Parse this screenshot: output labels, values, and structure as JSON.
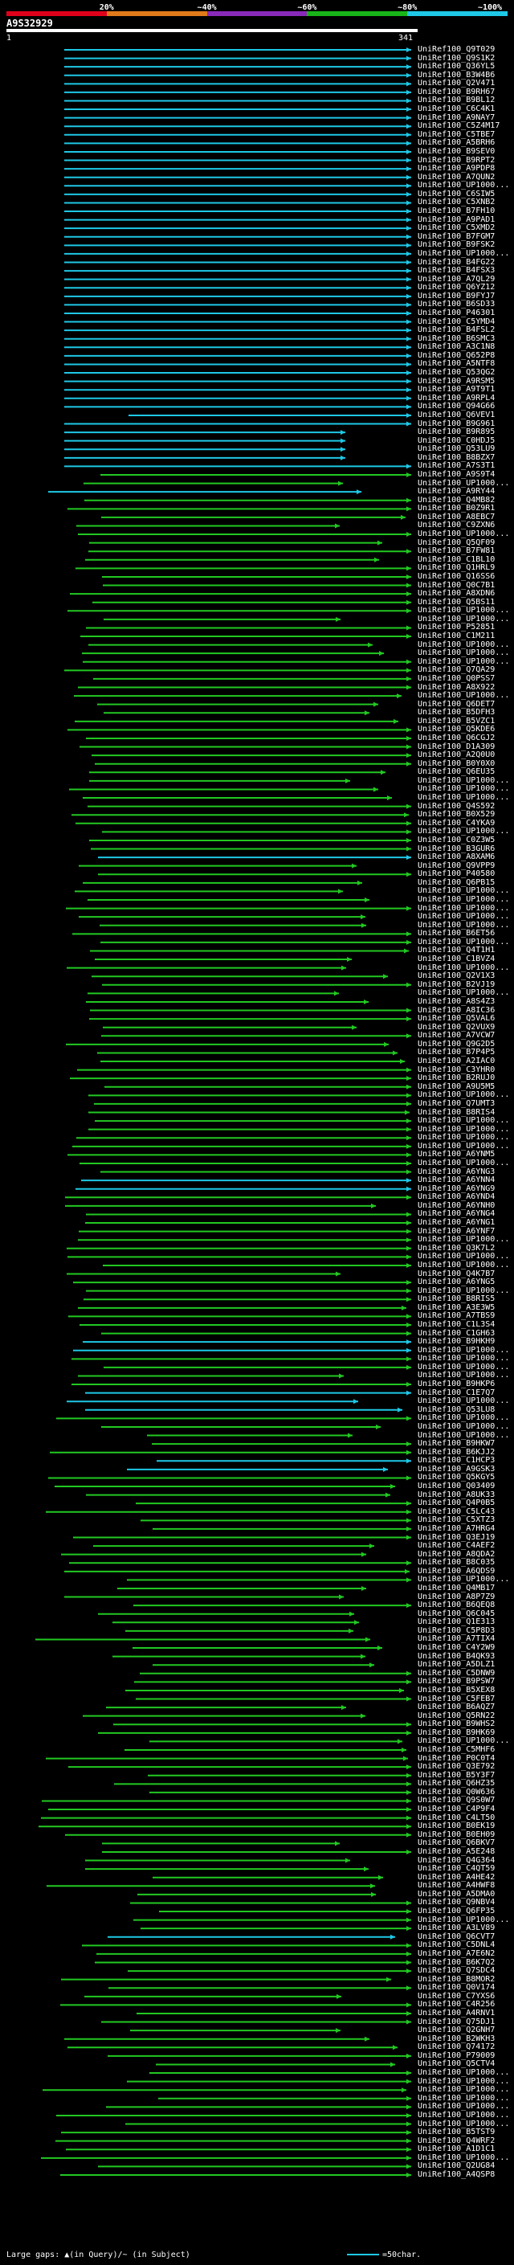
{
  "scale": {
    "labels": [
      "20%",
      "~40%",
      "~60%",
      "~80%",
      "~100%"
    ],
    "colors": [
      "#e0001a",
      "#e07a1a",
      "#8a2ab8",
      "#18b418",
      "#1ec8e6"
    ]
  },
  "query": {
    "title": "A9S32929",
    "start": "1",
    "end": "341"
  },
  "colors": {
    "cyan": "#1ec8e6",
    "green": "#22c822",
    "dark_green": "#0a6a0a",
    "white": "#ffffff"
  },
  "hits": [
    "UniRef100_Q9T029",
    "UniRef100_Q9S1K2",
    "UniRef100_Q36YL5",
    "UniRef100_B3W4B6",
    "UniRef100_Q2V471",
    "UniRef100_B9RH67",
    "UniRef100_B9BL12",
    "UniRef100_C6C4K1",
    "UniRef100_A9NAY7",
    "UniRef100_C5Z4M17",
    "UniRef100_C5TBE7",
    "UniRef100_A5BRH6",
    "UniRef100_B9SEV0",
    "UniRef100_B9RPT2",
    "UniRef100_A9PDP8",
    "UniRef100_A7QUN2",
    "UniRef100_UP1000...",
    "UniRef100_C6SIW5",
    "UniRef100_C5XNB2",
    "UniRef100_B7FH10",
    "UniRef100_A9PAD1",
    "UniRef100_C5XMD2",
    "UniRef100_B7FGM7",
    "UniRef100_B9FSK2",
    "UniRef100_UP1000...",
    "UniRef100_B4FG22",
    "UniRef100_B4FSX3",
    "UniRef100_A7QL29",
    "UniRef100_Q6YZ12",
    "UniRef100_B9FYJ7",
    "UniRef100_B6SD33",
    "UniRef100_P46301",
    "UniRef100_C5YMD4",
    "UniRef100_B4FSL2",
    "UniRef100_B6SMC3",
    "UniRef100_A3C1N8",
    "UniRef100_Q652P8",
    "UniRef100_A5NTF8",
    "UniRef100_Q53QG2",
    "UniRef100_A9RSM5",
    "UniRef100_A9T9T1",
    "UniRef100_A9RPL4",
    "UniRef100_Q94G66",
    "UniRef100_Q6VEV1",
    "UniRef100_B9G961",
    "UniRef100_B9R895",
    "UniRef100_C0HDJ5",
    "UniRef100_Q53LU9",
    "UniRef100_B8BZX7",
    "UniRef100_A7S3T1",
    "UniRef100_A9S9T4",
    "UniRef100_UP1000...",
    "UniRef100_A9RY44",
    "UniRef100_Q4MB82",
    "UniRef100_B0Z9R1",
    "UniRef100_A8EBC7",
    "UniRef100_C9ZXN6",
    "UniRef100_UP1000...",
    "UniRef100_Q5QF09",
    "UniRef100_B7FW81",
    "UniRef100_C1BL10",
    "UniRef100_Q1HRL9",
    "UniRef100_Q16SS6",
    "UniRef100_Q0C7B1",
    "UniRef100_A8XDN6",
    "UniRef100_Q5BS11",
    "UniRef100_UP1000...",
    "UniRef100_UP1000...",
    "UniRef100_P52851",
    "UniRef100_C1M211",
    "UniRef100_UP1000...",
    "UniRef100_UP1000...",
    "UniRef100_UP1000...",
    "UniRef100_Q7QA29",
    "UniRef100_Q0PSS7",
    "UniRef100_A8X922",
    "UniRef100_UP1000...",
    "UniRef100_Q6DET7",
    "UniRef100_B5DFH3",
    "UniRef100_B5VZC1",
    "UniRef100_Q5KDE6",
    "UniRef100_Q6CGJ2",
    "UniRef100_D1A309",
    "UniRef100_A2Q0U0",
    "UniRef100_B0Y0X0",
    "UniRef100_Q6EU35",
    "UniRef100_UP1000...",
    "UniRef100_UP1000...",
    "UniRef100_UP1000...",
    "UniRef100_Q4S592",
    "UniRef100_B0X529",
    "UniRef100_C4YKA9",
    "UniRef100_UP1000...",
    "UniRef100_C0Z3W5",
    "UniRef100_B3GUR6",
    "UniRef100_A8XAM6",
    "UniRef100_Q9VPP9",
    "UniRef100_P40580",
    "UniRef100_Q6PB15",
    "UniRef100_UP1000...",
    "UniRef100_UP1000...",
    "UniRef100_UP1000...",
    "UniRef100_UP1000...",
    "UniRef100_UP1000...",
    "UniRef100_B6ET56",
    "UniRef100_UP1000...",
    "UniRef100_Q4T1H1",
    "UniRef100_C1BVZ4",
    "UniRef100_UP1000...",
    "UniRef100_Q2V1X3",
    "UniRef100_B2VJ19",
    "UniRef100_UP1000...",
    "UniRef100_A8S4Z3",
    "UniRef100_A8IC36",
    "UniRef100_Q5VAL6",
    "UniRef100_Q2VUX9",
    "UniRef100_A7VCW7",
    "UniRef100_Q9G2D5",
    "UniRef100_B7P4P5",
    "UniRef100_A2IAC0",
    "UniRef100_C3YHR0",
    "UniRef100_B2RUJ0",
    "UniRef100_A9U5M5",
    "UniRef100_UP1000...",
    "UniRef100_Q7UMT3",
    "UniRef100_B8RIS4",
    "UniRef100_UP1000...",
    "UniRef100_UP1000...",
    "UniRef100_UP1000...",
    "UniRef100_UP1000...",
    "UniRef100_A6YNM5",
    "UniRef100_UP1000...",
    "UniRef100_A6YNG3",
    "UniRef100_A6YNN4",
    "UniRef100_A6YNG9",
    "UniRef100_A6YND4",
    "UniRef100_A6YNH0",
    "UniRef100_A6YNG4",
    "UniRef100_A6YNG1",
    "UniRef100_A6YNF7",
    "UniRef100_UP1000...",
    "UniRef100_Q3K7L2",
    "UniRef100_UP1000...",
    "UniRef100_UP1000...",
    "UniRef100_Q4K7B7",
    "UniRef100_A6YNG5",
    "UniRef100_UP1000...",
    "UniRef100_B8RIS5",
    "UniRef100_A3E3W5",
    "UniRef100_A7TBS9",
    "UniRef100_C1L3S4",
    "UniRef100_C1GH63",
    "UniRef100_B9HKH9",
    "UniRef100_UP1000...",
    "UniRef100_UP1000...",
    "UniRef100_UP1000...",
    "UniRef100_UP1000...",
    "UniRef100_B9HKP6",
    "UniRef100_C1E7Q7",
    "UniRef100_UP1000...",
    "UniRef100_Q53LU8",
    "UniRef100_UP1000...",
    "UniRef100_UP1000...",
    "UniRef100_UP1000...",
    "UniRef100_B9HKW7",
    "UniRef100_B6KJJ2",
    "UniRef100_C1HCP3",
    "UniRef100_A9GSK3",
    "UniRef100_Q5KGY5",
    "UniRef100_Q03409",
    "UniRef100_A8UK33",
    "UniRef100_Q4P0B5",
    "UniRef100_C5LC43",
    "UniRef100_C5XTZ3",
    "UniRef100_A7HRG4",
    "UniRef100_Q3EJ19",
    "UniRef100_C4AEF2",
    "UniRef100_A8QDA2",
    "UniRef100_B8C035",
    "UniRef100_A6QDS9",
    "UniRef100_UP1000...",
    "UniRef100_Q4MB17",
    "UniRef100_A8P7Z9",
    "UniRef100_B6QEQ8",
    "UniRef100_Q6C045",
    "UniRef100_Q1E313",
    "UniRef100_C5P8D3",
    "UniRef100_A7TIX4",
    "UniRef100_C4Y2W9",
    "UniRef100_B4QK93",
    "UniRef100_A5DLZ1",
    "UniRef100_C5DNW9",
    "UniRef100_B9PSW7",
    "UniRef100_B5XEX8",
    "UniRef100_C5FEB7",
    "UniRef100_B6AQZ7",
    "UniRef100_Q5RN22",
    "UniRef100_B9WHS2",
    "UniRef100_B9HK69",
    "UniRef100_UP1000...",
    "UniRef100_C5MHF6",
    "UniRef100_P0C0T4",
    "UniRef100_Q3E792",
    "UniRef100_B5Y3F7",
    "UniRef100_Q6HZ35",
    "UniRef100_Q0W636",
    "UniRef100_Q9S0W7",
    "UniRef100_C4P9F4",
    "UniRef100_C4LT50",
    "UniRef100_B0EK19",
    "UniRef100_B0EH09",
    "UniRef100_Q6BKV7",
    "UniRef100_A5E248",
    "UniRef100_Q4G364",
    "UniRef100_C4QT59",
    "UniRef100_A4HE42",
    "UniRef100_A4HWF8",
    "UniRef100_A5DMA0",
    "UniRef100_Q9NBV4",
    "UniRef100_Q6FP35",
    "UniRef100_UP1000...",
    "UniRef100_A3LV89",
    "UniRef100_Q6CVT7",
    "UniRef100_C5DNL4",
    "UniRef100_A7E6N2",
    "UniRef100_B6K7Q2",
    "UniRef100_Q7SDC4",
    "UniRef100_B8MOR2",
    "UniRef100_Q0V174",
    "UniRef100_C7YXS6",
    "UniRef100_C4R256",
    "UniRef100_A4RNV1",
    "UniRef100_Q75DJ1",
    "UniRef100_Q2GNH7",
    "UniRef100_B2WKH3",
    "UniRef100_Q74172",
    "UniRef100_P79009",
    "UniRef100_Q5CTV4",
    "UniRef100_UP1000...",
    "UniRef100_UP1000...",
    "UniRef100_UP1000...",
    "UniRef100_UP1000...",
    "UniRef100_UP1000...",
    "UniRef100_UP1000...",
    "UniRef100_UP1000...",
    "UniRef100_B5TST9",
    "UniRef100_Q4WRF2",
    "UniRef100_A1D1C1",
    "UniRef100_UP1000...",
    "UniRef100_Q2UG84",
    "UniRef100_A4QSP8"
  ],
  "legend": {
    "left": "Large gaps: ▲(in Query)/~ (in Subject)",
    "right": "=50char."
  }
}
